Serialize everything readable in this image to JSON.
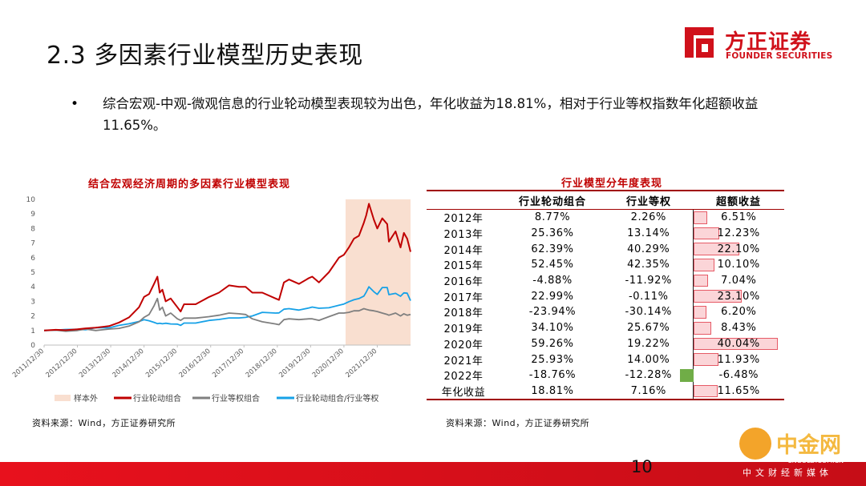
{
  "page": {
    "title": "2.3 多因素行业模型历史表现",
    "bullet": "•",
    "summary": "综合宏观-中观-微观信息的行业轮动模型表现较为出色，年化收益为18.81%，相对于行业等权指数年化超额收益11.65%。",
    "page_number": "10"
  },
  "logo": {
    "name_cn": "方正证券",
    "name_en": "FOUNDER SECURITIES",
    "color": "#d0111b"
  },
  "watermark": {
    "text_cn": "中金网",
    "text_en": "CNGOLD.COM.CN",
    "subtitle": "中文财经新媒体"
  },
  "chart_data": [
    {
      "type": "line",
      "title": "结合宏观经济周期的多因素行业模型表现",
      "xlabel": "",
      "ylabel": "",
      "ylim": [
        0,
        10
      ],
      "yticks": [
        "0",
        "1",
        "2",
        "3",
        "4",
        "5",
        "6",
        "7",
        "8",
        "9",
        "10"
      ],
      "xticks": [
        "2011/12/30",
        "2012/12/30",
        "2013/12/30",
        "2014/12/30",
        "2015/12/30",
        "2016/12/30",
        "2017/12/30",
        "2018/12/30",
        "2019/12/30",
        "2020/12/30",
        "2021/12/30"
      ],
      "grid": false,
      "legend_position": "bottom",
      "shaded_region": {
        "name": "样本外",
        "from": 2021.0,
        "to": 2022.95,
        "color": "#f9dfd0"
      },
      "x_range": [
        2011.95,
        2022.95
      ],
      "series": [
        {
          "name": "行业轮动组合",
          "color": "#c00000",
          "x": [
            2011.95,
            2012.3,
            2012.6,
            2012.95,
            2013.2,
            2013.5,
            2013.9,
            2014.2,
            2014.5,
            2014.8,
            2014.95,
            2015.1,
            2015.25,
            2015.35,
            2015.42,
            2015.5,
            2015.6,
            2015.75,
            2015.95,
            2016.05,
            2016.15,
            2016.5,
            2016.9,
            2017.2,
            2017.5,
            2017.8,
            2018.0,
            2018.2,
            2018.5,
            2018.9,
            2019.0,
            2019.15,
            2019.3,
            2019.6,
            2019.9,
            2020.0,
            2020.2,
            2020.5,
            2020.8,
            2020.95,
            2021.1,
            2021.25,
            2021.4,
            2021.55,
            2021.62,
            2021.7,
            2021.85,
            2021.95,
            2022.1,
            2022.25,
            2022.3,
            2022.5,
            2022.65,
            2022.75,
            2022.85,
            2022.95
          ],
          "y": [
            1.0,
            1.05,
            1.02,
            1.08,
            1.15,
            1.2,
            1.3,
            1.55,
            1.9,
            2.6,
            3.3,
            3.5,
            4.2,
            4.7,
            3.6,
            3.8,
            3.0,
            3.2,
            2.6,
            2.3,
            2.8,
            2.8,
            3.3,
            3.6,
            4.1,
            4.0,
            4.0,
            3.6,
            3.6,
            3.2,
            3.1,
            4.3,
            4.5,
            4.2,
            4.6,
            4.7,
            4.3,
            5.0,
            6.0,
            6.2,
            6.7,
            7.3,
            7.5,
            8.4,
            8.9,
            9.7,
            8.6,
            8.0,
            8.7,
            8.3,
            7.1,
            7.8,
            6.7,
            7.7,
            7.3,
            6.4
          ]
        },
        {
          "name": "行业等权组合",
          "color": "#7f7f7f",
          "x": [
            2011.95,
            2012.3,
            2012.6,
            2012.95,
            2013.2,
            2013.5,
            2013.9,
            2014.2,
            2014.5,
            2014.8,
            2014.95,
            2015.1,
            2015.25,
            2015.35,
            2015.42,
            2015.5,
            2015.6,
            2015.75,
            2015.95,
            2016.05,
            2016.15,
            2016.5,
            2016.9,
            2017.2,
            2017.5,
            2017.8,
            2018.0,
            2018.2,
            2018.5,
            2018.9,
            2019.0,
            2019.15,
            2019.3,
            2019.6,
            2019.9,
            2020.0,
            2020.2,
            2020.5,
            2020.8,
            2020.95,
            2021.1,
            2021.25,
            2021.4,
            2021.55,
            2021.62,
            2021.7,
            2021.85,
            2021.95,
            2022.1,
            2022.25,
            2022.3,
            2022.5,
            2022.65,
            2022.75,
            2022.85,
            2022.95
          ],
          "y": [
            1.0,
            1.02,
            0.95,
            1.0,
            1.1,
            1.0,
            1.1,
            1.15,
            1.3,
            1.6,
            1.9,
            2.1,
            2.7,
            3.2,
            2.4,
            2.6,
            2.0,
            2.2,
            1.8,
            1.7,
            1.85,
            1.85,
            1.95,
            2.05,
            2.2,
            2.15,
            2.1,
            1.8,
            1.6,
            1.45,
            1.4,
            1.75,
            1.8,
            1.75,
            1.8,
            1.8,
            1.7,
            1.95,
            2.2,
            2.2,
            2.25,
            2.35,
            2.35,
            2.5,
            2.45,
            2.4,
            2.35,
            2.3,
            2.2,
            2.1,
            2.05,
            2.2,
            2.0,
            2.15,
            2.05,
            2.1
          ]
        },
        {
          "name": "行业轮动组合/行业等权",
          "color": "#16a1e7",
          "x": [
            2011.95,
            2012.3,
            2012.6,
            2012.95,
            2013.2,
            2013.5,
            2013.9,
            2014.2,
            2014.5,
            2014.8,
            2014.95,
            2015.1,
            2015.25,
            2015.35,
            2015.42,
            2015.5,
            2015.6,
            2015.75,
            2015.95,
            2016.05,
            2016.15,
            2016.5,
            2016.9,
            2017.2,
            2017.5,
            2017.8,
            2018.0,
            2018.2,
            2018.5,
            2018.9,
            2019.0,
            2019.15,
            2019.3,
            2019.6,
            2019.9,
            2020.0,
            2020.2,
            2020.5,
            2020.8,
            2020.95,
            2021.1,
            2021.25,
            2021.4,
            2021.55,
            2021.62,
            2021.7,
            2021.85,
            2021.95,
            2022.1,
            2022.25,
            2022.3,
            2022.5,
            2022.65,
            2022.75,
            2022.85,
            2022.95
          ],
          "y": [
            1.0,
            1.03,
            1.07,
            1.08,
            1.05,
            1.2,
            1.18,
            1.35,
            1.46,
            1.62,
            1.74,
            1.67,
            1.56,
            1.47,
            1.5,
            1.46,
            1.5,
            1.45,
            1.44,
            1.35,
            1.51,
            1.51,
            1.69,
            1.76,
            1.86,
            1.86,
            1.9,
            2.0,
            2.25,
            2.2,
            2.21,
            2.46,
            2.5,
            2.4,
            2.55,
            2.61,
            2.53,
            2.56,
            2.73,
            2.82,
            2.98,
            3.11,
            3.19,
            3.36,
            3.63,
            4.0,
            3.66,
            3.48,
            3.95,
            3.95,
            3.46,
            3.55,
            3.35,
            3.58,
            3.56,
            3.05
          ]
        }
      ]
    },
    {
      "type": "table",
      "title": "行业模型分年度表现",
      "columns": [
        "",
        "行业轮动组合",
        "行业等权",
        "超额收益"
      ],
      "rows": [
        {
          "label": "2012年",
          "rotation": "8.77%",
          "equal": "2.26%",
          "excess": "6.51%",
          "excess_value": 6.51
        },
        {
          "label": "2013年",
          "rotation": "25.36%",
          "equal": "13.14%",
          "excess": "12.23%",
          "excess_value": 12.23
        },
        {
          "label": "2014年",
          "rotation": "62.39%",
          "equal": "40.29%",
          "excess": "22.10%",
          "excess_value": 22.1
        },
        {
          "label": "2015年",
          "rotation": "52.45%",
          "equal": "42.35%",
          "excess": "10.10%",
          "excess_value": 10.1
        },
        {
          "label": "2016年",
          "rotation": "-4.88%",
          "equal": "-11.92%",
          "excess": "7.04%",
          "excess_value": 7.04
        },
        {
          "label": "2017年",
          "rotation": "22.99%",
          "equal": "-0.11%",
          "excess": "23.10%",
          "excess_value": 23.1
        },
        {
          "label": "2018年",
          "rotation": "-23.94%",
          "equal": "-30.14%",
          "excess": "6.20%",
          "excess_value": 6.2
        },
        {
          "label": "2019年",
          "rotation": "34.10%",
          "equal": "25.67%",
          "excess": "8.43%",
          "excess_value": 8.43
        },
        {
          "label": "2020年",
          "rotation": "59.26%",
          "equal": "19.22%",
          "excess": "40.04%",
          "excess_value": 40.04
        },
        {
          "label": "2021年",
          "rotation": "25.93%",
          "equal": "14.00%",
          "excess": "11.93%",
          "excess_value": 11.93
        },
        {
          "label": "2022年",
          "rotation": "-18.76%",
          "equal": "-12.28%",
          "excess": "-6.48%",
          "excess_value": -6.48
        },
        {
          "label": "年化收益",
          "rotation": "18.81%",
          "equal": "7.16%",
          "excess": "11.65%",
          "excess_value": 11.65
        }
      ],
      "positive_bar_color": "#fbd5d8",
      "negative_bar_color": "#70ad47"
    }
  ],
  "sources": {
    "left": "资料来源：Wind，方正证券研究所",
    "right": "资料来源：Wind，方正证券研究所"
  }
}
